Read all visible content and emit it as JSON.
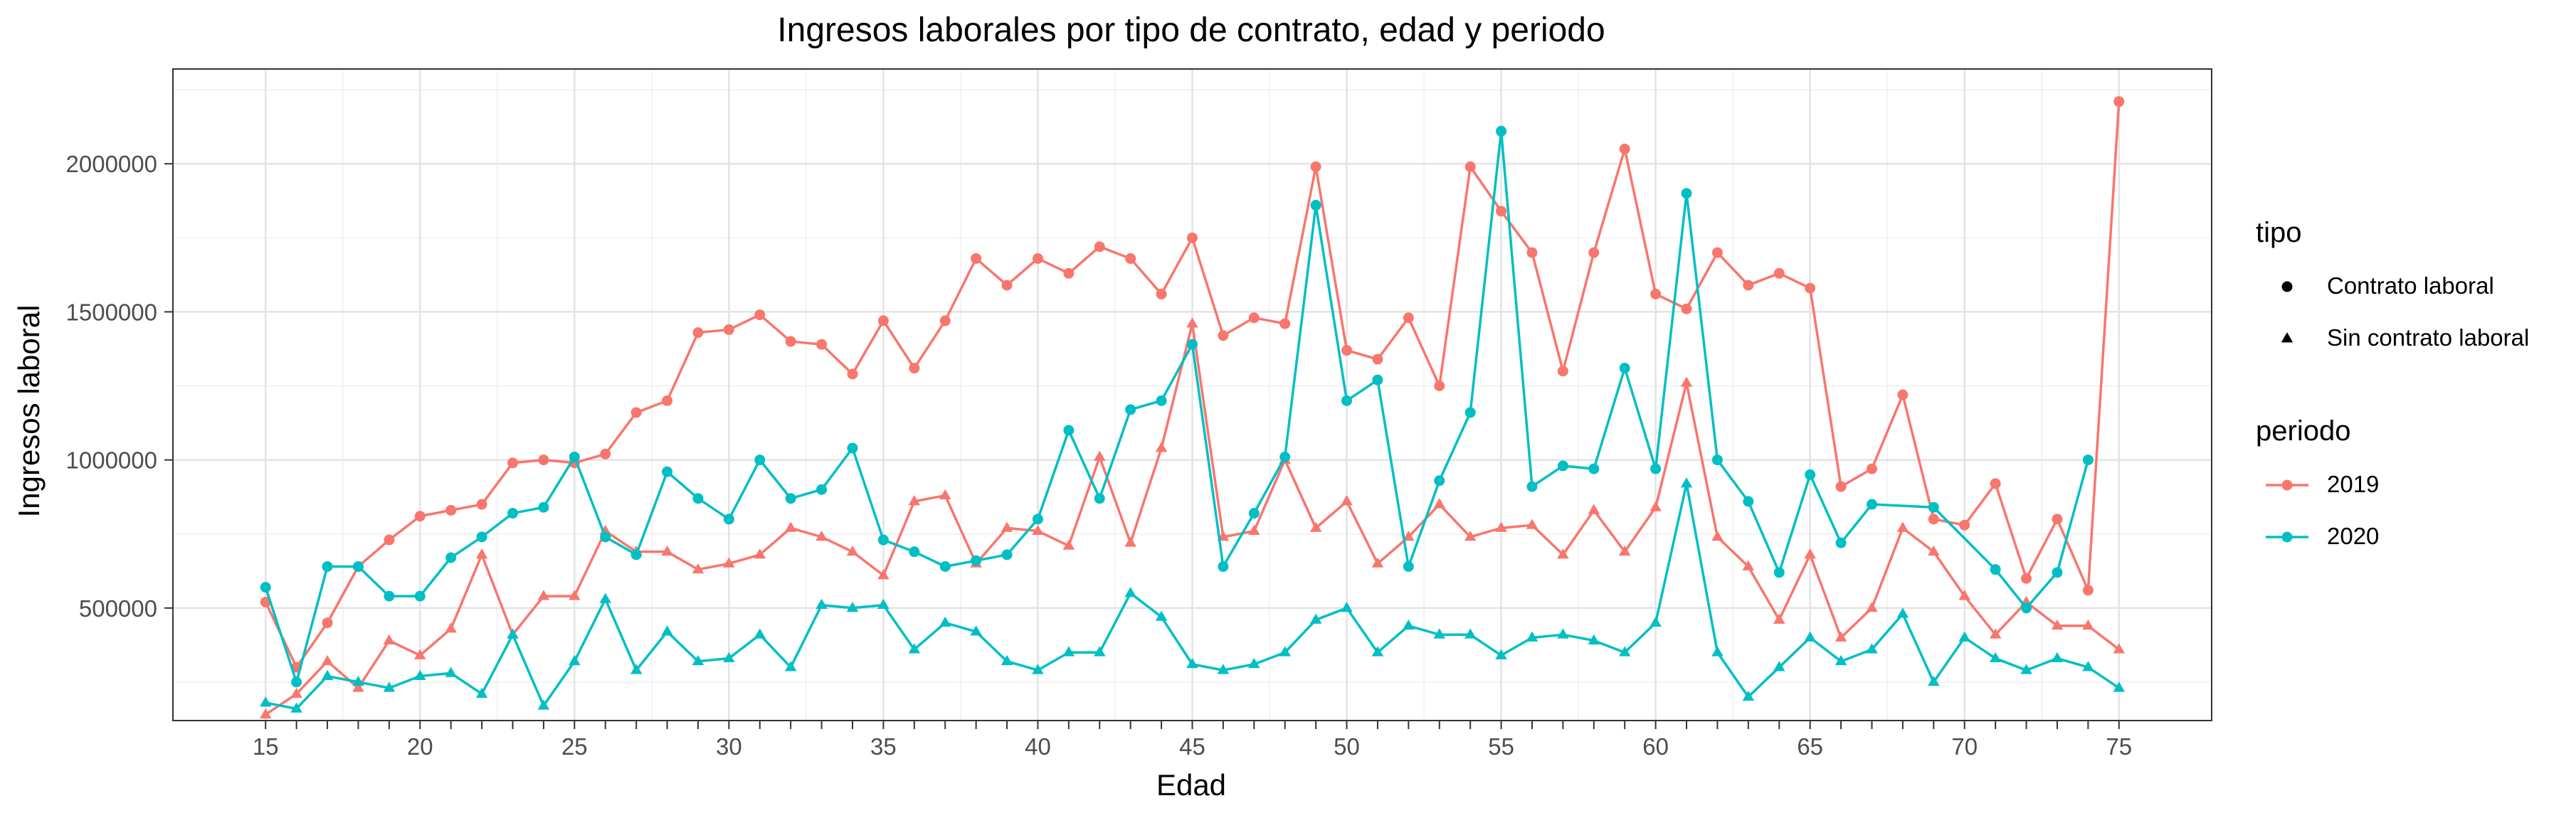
{
  "chart_data": {
    "type": "line",
    "title": "Ingresos laborales por tipo de contrato, edad y periodo",
    "xlabel": "Edad",
    "ylabel": "Ingresos laboral",
    "xlim": [
      12,
      78
    ],
    "ylim": [
      120000,
      2320000
    ],
    "x_ticks": [
      15,
      20,
      25,
      30,
      35,
      40,
      45,
      50,
      55,
      60,
      65,
      70,
      75
    ],
    "y_ticks": [
      500000,
      1000000,
      1500000,
      2000000
    ],
    "grid": true,
    "legend_position": "right",
    "legends": [
      {
        "title": "tipo",
        "items": [
          {
            "label": "Contrato laboral",
            "shape": "circle"
          },
          {
            "label": "Sin contrato laboral",
            "shape": "triangle"
          }
        ]
      },
      {
        "title": "periodo",
        "items": [
          {
            "label": "2019",
            "color": "#F8766D"
          },
          {
            "label": "2020",
            "color": "#00BFC4"
          }
        ]
      }
    ],
    "series": [
      {
        "periodo": "2019",
        "tipo": "Contrato laboral",
        "color": "#F8766D",
        "shape": "circle",
        "x": [
          15,
          16,
          17,
          18,
          19,
          20,
          21,
          22,
          23,
          24,
          25,
          26,
          27,
          28,
          29,
          30,
          31,
          32,
          33,
          34,
          35,
          36,
          37,
          38,
          39,
          40,
          41,
          42,
          43,
          44,
          45,
          46,
          47,
          48,
          49,
          50,
          51,
          52,
          53,
          54,
          55,
          56,
          57,
          58,
          59,
          60,
          61,
          62,
          63,
          64,
          65,
          66,
          67,
          68,
          69,
          70,
          71,
          72,
          73,
          74,
          75
        ],
        "y": [
          520000,
          300000,
          450000,
          640000,
          730000,
          810000,
          830000,
          850000,
          990000,
          1000000,
          990000,
          1020000,
          1160000,
          1200000,
          1430000,
          1440000,
          1490000,
          1400000,
          1390000,
          1290000,
          1470000,
          1310000,
          1470000,
          1680000,
          1590000,
          1680000,
          1630000,
          1720000,
          1680000,
          1560000,
          1750000,
          1420000,
          1480000,
          1460000,
          1990000,
          1370000,
          1340000,
          1480000,
          1250000,
          1990000,
          1840000,
          1700000,
          1300000,
          1700000,
          2050000,
          1560000,
          1510000,
          1700000,
          1590000,
          1630000,
          1580000,
          910000,
          970000,
          1220000,
          800000,
          780000,
          920000,
          600000,
          800000,
          560000,
          2210000
        ]
      },
      {
        "periodo": "2019",
        "tipo": "Sin contrato laboral",
        "color": "#F8766D",
        "shape": "triangle",
        "x": [
          15,
          16,
          17,
          18,
          19,
          20,
          21,
          22,
          23,
          24,
          25,
          26,
          27,
          28,
          29,
          30,
          31,
          32,
          33,
          34,
          35,
          36,
          37,
          38,
          39,
          40,
          41,
          42,
          43,
          44,
          45,
          46,
          47,
          48,
          49,
          50,
          51,
          52,
          53,
          54,
          55,
          56,
          57,
          58,
          59,
          60,
          61,
          62,
          63,
          64,
          65,
          66,
          67,
          68,
          69,
          70,
          71,
          72,
          73,
          74,
          75
        ],
        "y": [
          140000,
          210000,
          320000,
          230000,
          390000,
          340000,
          430000,
          680000,
          410000,
          540000,
          540000,
          760000,
          690000,
          690000,
          630000,
          650000,
          680000,
          770000,
          740000,
          690000,
          610000,
          860000,
          880000,
          650000,
          770000,
          760000,
          710000,
          1010000,
          720000,
          1040000,
          1460000,
          740000,
          760000,
          1000000,
          770000,
          860000,
          650000,
          740000,
          850000,
          740000,
          770000,
          780000,
          680000,
          830000,
          690000,
          840000,
          1260000,
          740000,
          640000,
          460000,
          680000,
          400000,
          500000,
          770000,
          690000,
          540000,
          410000,
          520000,
          440000,
          440000,
          360000
        ]
      },
      {
        "periodo": "2020",
        "tipo": "Contrato laboral",
        "color": "#00BFC4",
        "shape": "circle",
        "x": [
          15,
          16,
          17,
          18,
          19,
          20,
          21,
          22,
          23,
          24,
          25,
          26,
          27,
          28,
          29,
          30,
          31,
          32,
          33,
          34,
          35,
          36,
          37,
          38,
          39,
          40,
          41,
          42,
          43,
          44,
          45,
          46,
          47,
          48,
          49,
          50,
          51,
          52,
          53,
          54,
          55,
          56,
          57,
          58,
          59,
          60,
          61,
          62,
          63,
          64,
          65,
          66,
          67,
          69,
          71,
          72,
          73,
          74
        ],
        "y": [
          570000,
          250000,
          640000,
          640000,
          540000,
          540000,
          670000,
          740000,
          820000,
          840000,
          1010000,
          740000,
          680000,
          960000,
          870000,
          800000,
          1000000,
          870000,
          900000,
          1040000,
          730000,
          690000,
          640000,
          660000,
          680000,
          800000,
          1100000,
          870000,
          1170000,
          1200000,
          1390000,
          640000,
          820000,
          1010000,
          1860000,
          1200000,
          1270000,
          640000,
          930000,
          1160000,
          2110000,
          910000,
          980000,
          970000,
          1310000,
          970000,
          1900000,
          1000000,
          860000,
          620000,
          950000,
          720000,
          850000,
          840000,
          630000,
          500000,
          620000,
          1000000
        ]
      },
      {
        "periodo": "2020",
        "tipo": "Sin contrato laboral",
        "color": "#00BFC4",
        "shape": "triangle",
        "x": [
          15,
          16,
          17,
          18,
          19,
          20,
          21,
          22,
          23,
          24,
          25,
          26,
          27,
          28,
          29,
          30,
          31,
          32,
          33,
          34,
          35,
          36,
          37,
          38,
          39,
          40,
          41,
          42,
          43,
          44,
          45,
          46,
          47,
          48,
          49,
          50,
          51,
          52,
          53,
          54,
          55,
          56,
          57,
          58,
          59,
          60,
          61,
          62,
          63,
          64,
          65,
          66,
          67,
          68,
          69,
          70,
          71,
          72,
          73,
          74,
          75
        ],
        "y": [
          180000,
          160000,
          270000,
          250000,
          230000,
          270000,
          280000,
          210000,
          410000,
          170000,
          320000,
          530000,
          290000,
          420000,
          320000,
          330000,
          410000,
          300000,
          510000,
          500000,
          510000,
          360000,
          450000,
          420000,
          320000,
          290000,
          350000,
          350000,
          550000,
          470000,
          310000,
          290000,
          310000,
          350000,
          460000,
          500000,
          350000,
          440000,
          410000,
          410000,
          340000,
          400000,
          410000,
          390000,
          350000,
          450000,
          920000,
          350000,
          200000,
          300000,
          400000,
          320000,
          360000,
          480000,
          250000,
          400000,
          330000,
          290000,
          330000,
          300000,
          230000
        ]
      }
    ]
  }
}
